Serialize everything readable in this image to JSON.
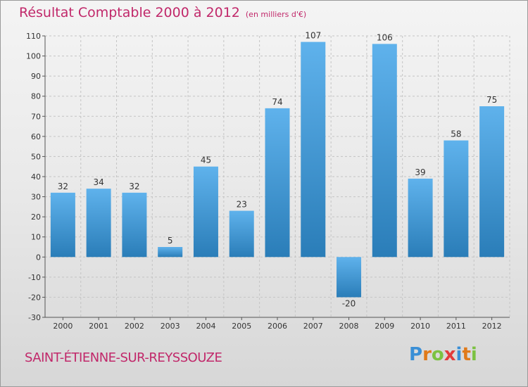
{
  "title": "Résultat Comptable 2000 à 2012",
  "subtitle": "(en milliers d'€)",
  "commune": "SAINT-ÉTIENNE-SUR-REYSSOUZE",
  "logo": [
    "P",
    "r",
    "o",
    "x",
    "i",
    "t",
    "i"
  ],
  "colors": {
    "title": "#c1286a",
    "bar_light": "#5fb2ec",
    "bar_dark": "#2a7db8",
    "logo": [
      "#3a8fd6",
      "#e07a1a",
      "#7cc242",
      "#e33b3b",
      "#3a8fd6",
      "#e07a1a",
      "#7cc242"
    ]
  },
  "chart_data": {
    "type": "bar",
    "title": "Résultat Comptable 2000 à 2012",
    "subtitle": "(en milliers d'€)",
    "xlabel": "",
    "ylabel": "",
    "categories": [
      "2000",
      "2001",
      "2002",
      "2003",
      "2004",
      "2005",
      "2006",
      "2007",
      "2008",
      "2009",
      "2010",
      "2011",
      "2012"
    ],
    "values": [
      32,
      34,
      32,
      5,
      45,
      23,
      74,
      107,
      -20,
      106,
      39,
      58,
      75
    ],
    "value_labels": [
      "32",
      "34",
      "32",
      "5",
      "45",
      "23",
      "74",
      "107",
      "-20",
      "106",
      "39",
      "58",
      "75"
    ],
    "ylim": [
      -30,
      110
    ],
    "yticks": [
      -30,
      -20,
      -10,
      0,
      10,
      20,
      30,
      40,
      50,
      60,
      70,
      80,
      90,
      100,
      110
    ],
    "ytick_labels": [
      "-30",
      "-20",
      "-10",
      "0",
      "10",
      "20",
      "30",
      "40",
      "50",
      "60",
      "70",
      "80",
      "90",
      "100",
      "110"
    ],
    "grid": true
  }
}
